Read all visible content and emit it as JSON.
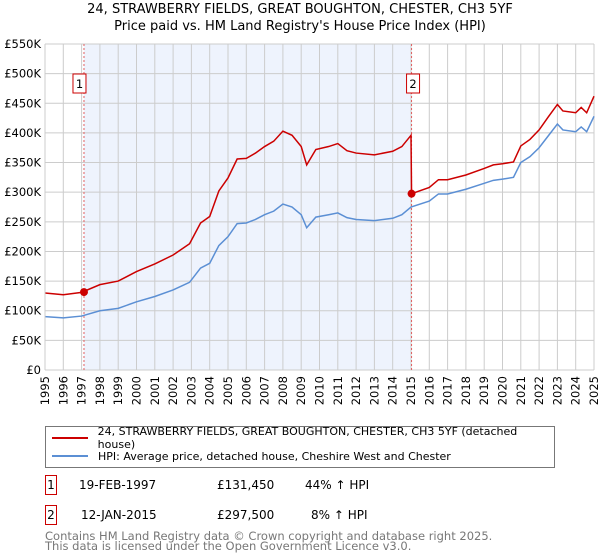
{
  "chart_data": {
    "type": "line",
    "title": "24, STRAWBERRY FIELDS, GREAT BOUGHTON, CHESTER, CH3 5YF",
    "subtitle": "Price paid vs. HM Land Registry's House Price Index (HPI)",
    "xlim": [
      1995,
      2025
    ],
    "ylim": [
      0,
      550000
    ],
    "grid": true,
    "x_ticks": [
      "1995",
      "1996",
      "1997",
      "1998",
      "1999",
      "2000",
      "2001",
      "2002",
      "2003",
      "2004",
      "2005",
      "2006",
      "2007",
      "2008",
      "2009",
      "2010",
      "2011",
      "2012",
      "2013",
      "2014",
      "2015",
      "2016",
      "2017",
      "2018",
      "2019",
      "2020",
      "2021",
      "2022",
      "2023",
      "2024",
      "2025"
    ],
    "y_ticks": [
      "£0",
      "£50K",
      "£100K",
      "£150K",
      "£200K",
      "£250K",
      "£300K",
      "£350K",
      "£400K",
      "£450K",
      "£500K",
      "£550K"
    ],
    "shaded_range": [
      1997.13,
      2015.03
    ],
    "series": [
      {
        "name": "24, STRAWBERRY FIELDS, GREAT BOUGHTON, CHESTER, CH3 5YF (detached house)",
        "color": "#cc0000",
        "x": [
          1995,
          1996,
          1997,
          1998,
          1999,
          2000,
          2001,
          2002,
          2002.9,
          2003.5,
          2004,
          2004.5,
          2005,
          2005.5,
          2006,
          2006.5,
          2007,
          2007.5,
          2008,
          2008.5,
          2009,
          2009.3,
          2009.8,
          2010.5,
          2011,
          2011.5,
          2012,
          2013,
          2014,
          2014.5,
          2015.0,
          2015.03,
          2016,
          2016.5,
          2017,
          2018,
          2019,
          2019.5,
          2020,
          2020.6,
          2021,
          2021.5,
          2022,
          2022.5,
          2023,
          2023.3,
          2024,
          2024.3,
          2024.6,
          2025
        ],
        "y": [
          130000,
          127000,
          131000,
          144000,
          150000,
          166000,
          179000,
          194000,
          213000,
          248000,
          259000,
          302000,
          324000,
          356000,
          357000,
          366000,
          377000,
          386000,
          403000,
          396000,
          377000,
          346000,
          372000,
          377000,
          382000,
          370000,
          366000,
          363000,
          369000,
          377000,
          396000,
          297500,
          308000,
          321000,
          321000,
          329000,
          340000,
          346000,
          348000,
          351000,
          378000,
          389000,
          405000,
          427000,
          448000,
          437000,
          434000,
          443000,
          434000,
          462000
        ]
      },
      {
        "name": "HPI: Average price, detached house, Cheshire West and Chester",
        "color": "#5b8fd4",
        "x": [
          1995,
          1996,
          1997,
          1998,
          1999,
          2000,
          2001,
          2002,
          2002.9,
          2003.5,
          2004,
          2004.5,
          2005,
          2005.5,
          2006,
          2006.5,
          2007,
          2007.5,
          2008,
          2008.5,
          2009,
          2009.3,
          2009.8,
          2010.5,
          2011,
          2011.5,
          2012,
          2013,
          2014,
          2014.5,
          2015,
          2016,
          2016.5,
          2017,
          2018,
          2019,
          2019.5,
          2020,
          2020.6,
          2021,
          2021.5,
          2022,
          2022.5,
          2023,
          2023.3,
          2024,
          2024.3,
          2024.6,
          2025
        ],
        "y": [
          90000,
          88000,
          91000,
          100000,
          104000,
          115000,
          124000,
          135000,
          148000,
          172000,
          180000,
          210000,
          225000,
          247000,
          248000,
          254000,
          262000,
          268000,
          280000,
          275000,
          262000,
          240000,
          258000,
          262000,
          265000,
          257000,
          254000,
          252000,
          256000,
          262000,
          275000,
          285000,
          297000,
          297000,
          305000,
          315000,
          320000,
          322000,
          325000,
          350000,
          360000,
          375000,
          395000,
          415000,
          405000,
          402000,
          410000,
          402000,
          428000
        ]
      }
    ],
    "sales": [
      {
        "label": "1",
        "x": 1997.13,
        "date": "19-FEB-1997",
        "price": 131450,
        "price_text": "£131,450",
        "hpi_text": "44% ↑ HPI"
      },
      {
        "label": "2",
        "x": 2015.03,
        "date": "12-JAN-2015",
        "price": 297500,
        "price_text": "£297,500",
        "hpi_text": "8% ↑ HPI"
      }
    ]
  },
  "footer": {
    "line1": "Contains HM Land Registry data © Crown copyright and database right 2025.",
    "line2": "This data is licensed under the Open Government Licence v3.0."
  }
}
